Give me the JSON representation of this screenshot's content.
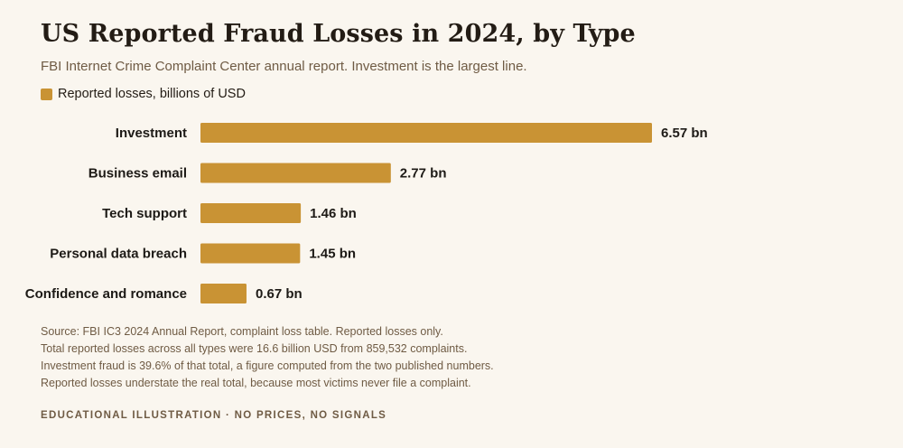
{
  "title": "US Reported Fraud Losses in 2024, by Type",
  "subtitle": "FBI Internet Crime Complaint Center annual report. Investment is the largest line.",
  "colors": {
    "bar": "#c99334",
    "background": "#faf6ef"
  },
  "chart_data": {
    "type": "bar",
    "orientation": "horizontal",
    "title": "US Reported Fraud Losses in 2024, by Type",
    "subtitle": "FBI Internet Crime Complaint Center annual report. Investment is the largest line.",
    "categories": [
      "Investment",
      "Business email",
      "Tech support",
      "Personal data breach",
      "Confidence and romance"
    ],
    "series": [
      {
        "name": "Reported losses, billions of USD",
        "values": [
          6.57,
          2.77,
          1.46,
          1.45,
          0.67
        ],
        "data_labels": [
          "6.57 bn",
          "2.77 bn",
          "1.46 bn",
          "1.45 bn",
          "0.67 bn"
        ]
      }
    ],
    "legend": {
      "position": "top-left",
      "entries": [
        "Reported losses, billions of USD"
      ]
    },
    "grid": false,
    "xlabel": "",
    "ylabel": ""
  },
  "notes": [
    "Source: FBI IC3 2024 Annual Report, complaint loss table. Reported losses only.",
    "Total reported losses across all types were 16.6 billion USD from 859,532 complaints.",
    "Investment fraud is 39.6% of that total, a figure computed from the two published numbers.",
    "Reported losses understate the real total, because most victims never file a complaint."
  ],
  "disclaimer": "EDUCATIONAL ILLUSTRATION · NO PRICES, NO SIGNALS"
}
